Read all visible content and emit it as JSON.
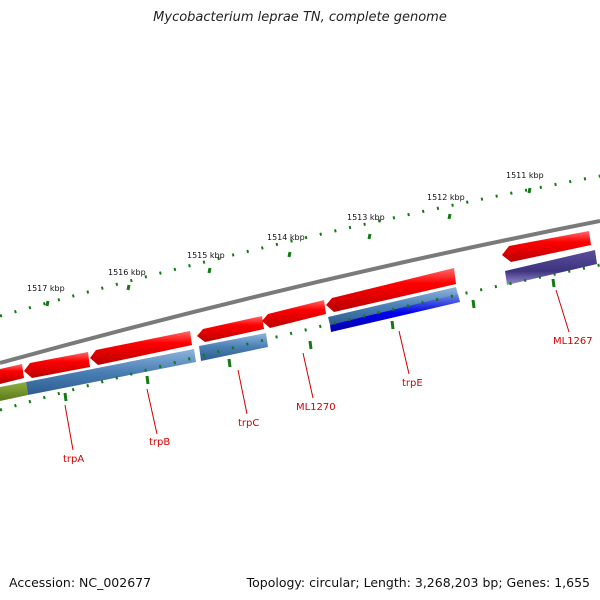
{
  "title": "Mycobacterium leprae TN, complete genome",
  "footer": {
    "accession": "Accession: NC_002677",
    "summary": "Topology: circular; Length: 3,268,203 bp; Genes: 1,655"
  },
  "scale_labels": [
    "1517 kbp",
    "1516 kbp",
    "1515 kbp",
    "1514 kbp",
    "1513 kbp",
    "1512 kbp",
    "1511 kbp"
  ],
  "gene_labels": [
    "trpA",
    "trpB",
    "trpC",
    "ML1270",
    "trpE",
    "ML1267"
  ],
  "colors": {
    "backbone": "#777777",
    "cds_forward": "#ff0000",
    "feature_blue": "#4a7fb5",
    "feature_darkblue": "#0000ee",
    "feature_purple": "#4b3f8a",
    "feature_olive": "#6b8e23",
    "tick": "#137a13",
    "label": "#d40000"
  }
}
